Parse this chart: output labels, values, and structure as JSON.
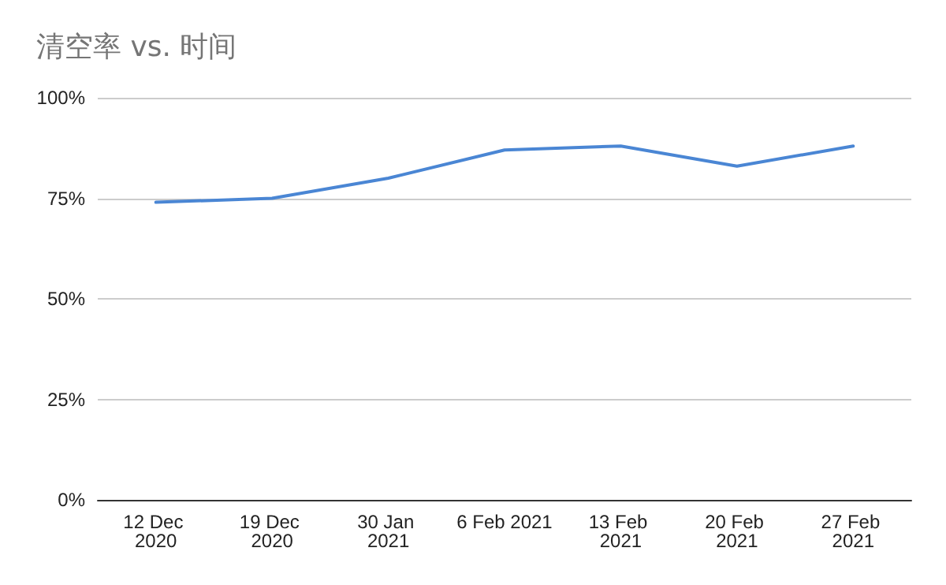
{
  "chart_data": {
    "type": "line",
    "title": "清空率 vs. 时间",
    "categories": [
      "12 Dec 2020",
      "19 Dec 2020",
      "30 Jan 2021",
      "6 Feb 2021",
      "13 Feb 2021",
      "20 Feb 2021",
      "27 Feb 2021"
    ],
    "series": [
      {
        "color": "#4a86d4",
        "values": [
          74,
          75,
          80,
          87,
          88,
          83,
          88
        ]
      }
    ],
    "ylim": [
      0,
      100
    ],
    "yticks": [
      {
        "value": 0,
        "label": "0%"
      },
      {
        "value": 25,
        "label": "25%"
      },
      {
        "value": 50,
        "label": "50%"
      },
      {
        "value": 75,
        "label": "75%"
      },
      {
        "value": 100,
        "label": "100%"
      }
    ],
    "grid": "y",
    "marker": "none",
    "line_style": "solid"
  }
}
